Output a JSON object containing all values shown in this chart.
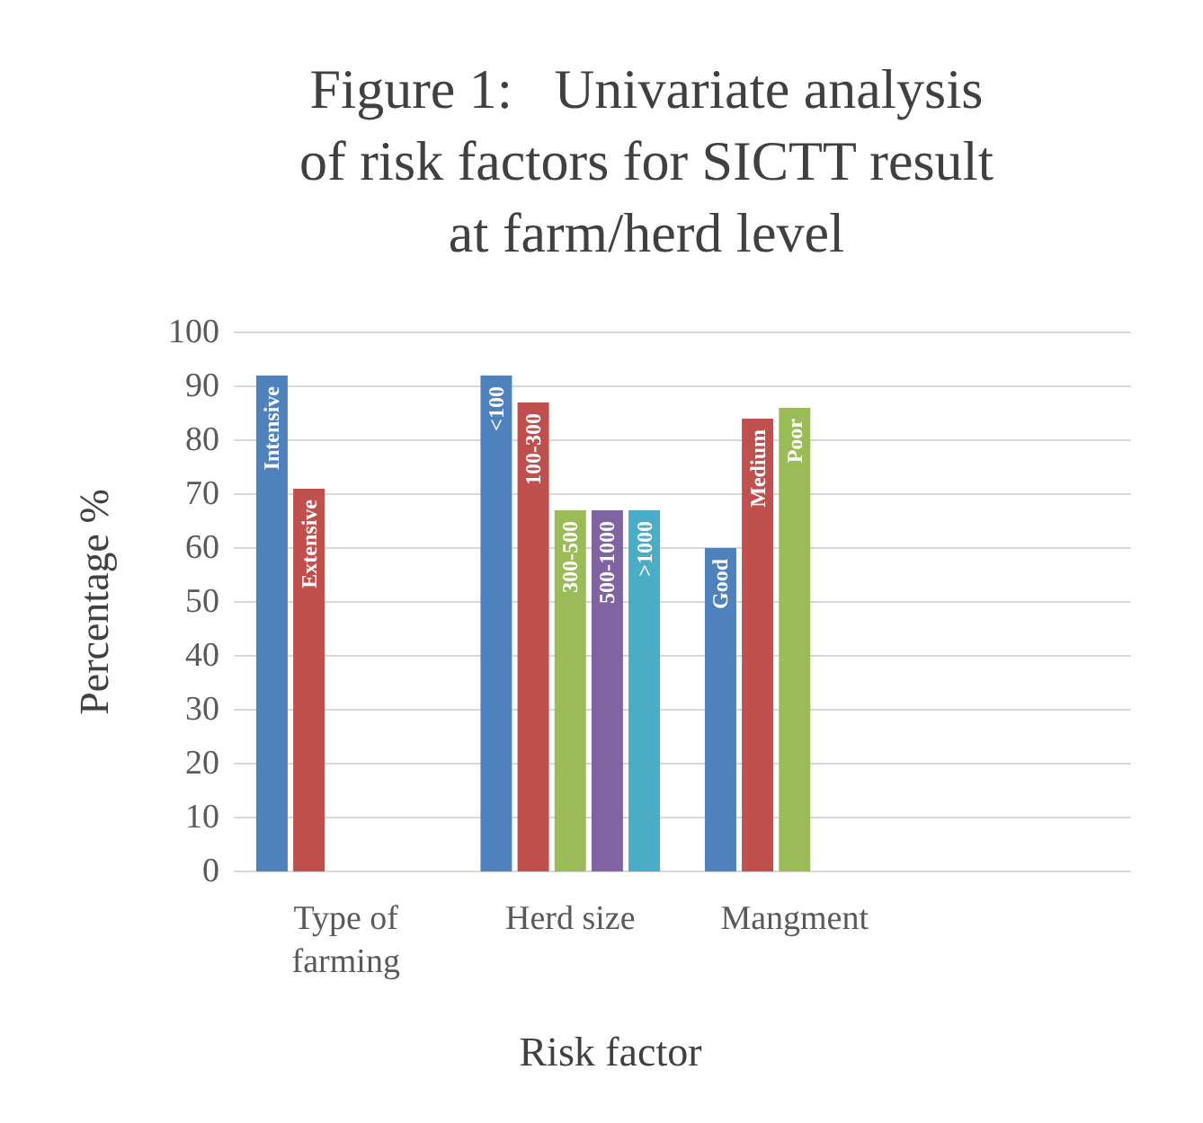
{
  "chart_data": {
    "type": "bar",
    "title": "Figure 1:   Univariate analysis of risk factors for SICTT result at farm/herd level",
    "xlabel": "Risk factor",
    "ylabel": "Percentage %",
    "categories": [
      "Type of farming",
      "Herd size",
      "Mangment",
      null
    ],
    "series": [
      {
        "color": "#4f81bd",
        "values": [
          92,
          92,
          60,
          null
        ],
        "value_labels": [
          "Intensive",
          "<100",
          "Good",
          null
        ]
      },
      {
        "color": "#c0504d",
        "values": [
          71,
          87,
          84,
          null
        ],
        "value_labels": [
          "Extensive",
          "100-300",
          "Medium",
          null
        ]
      },
      {
        "color": "#9bbb59",
        "values": [
          null,
          67,
          86,
          null
        ],
        "value_labels": [
          null,
          "300-500",
          "Poor",
          null
        ]
      },
      {
        "color": "#8064a2",
        "values": [
          null,
          67,
          null,
          null
        ],
        "value_labels": [
          null,
          "500-1000",
          null,
          null
        ]
      },
      {
        "color": "#4bacc6",
        "values": [
          null,
          67,
          null,
          null
        ],
        "value_labels": [
          null,
          ">1000",
          null,
          null
        ]
      }
    ],
    "ylim": [
      0,
      100
    ],
    "yticks": [
      0,
      10,
      20,
      30,
      40,
      50,
      60,
      70,
      80,
      90,
      100
    ],
    "grid": "y"
  }
}
